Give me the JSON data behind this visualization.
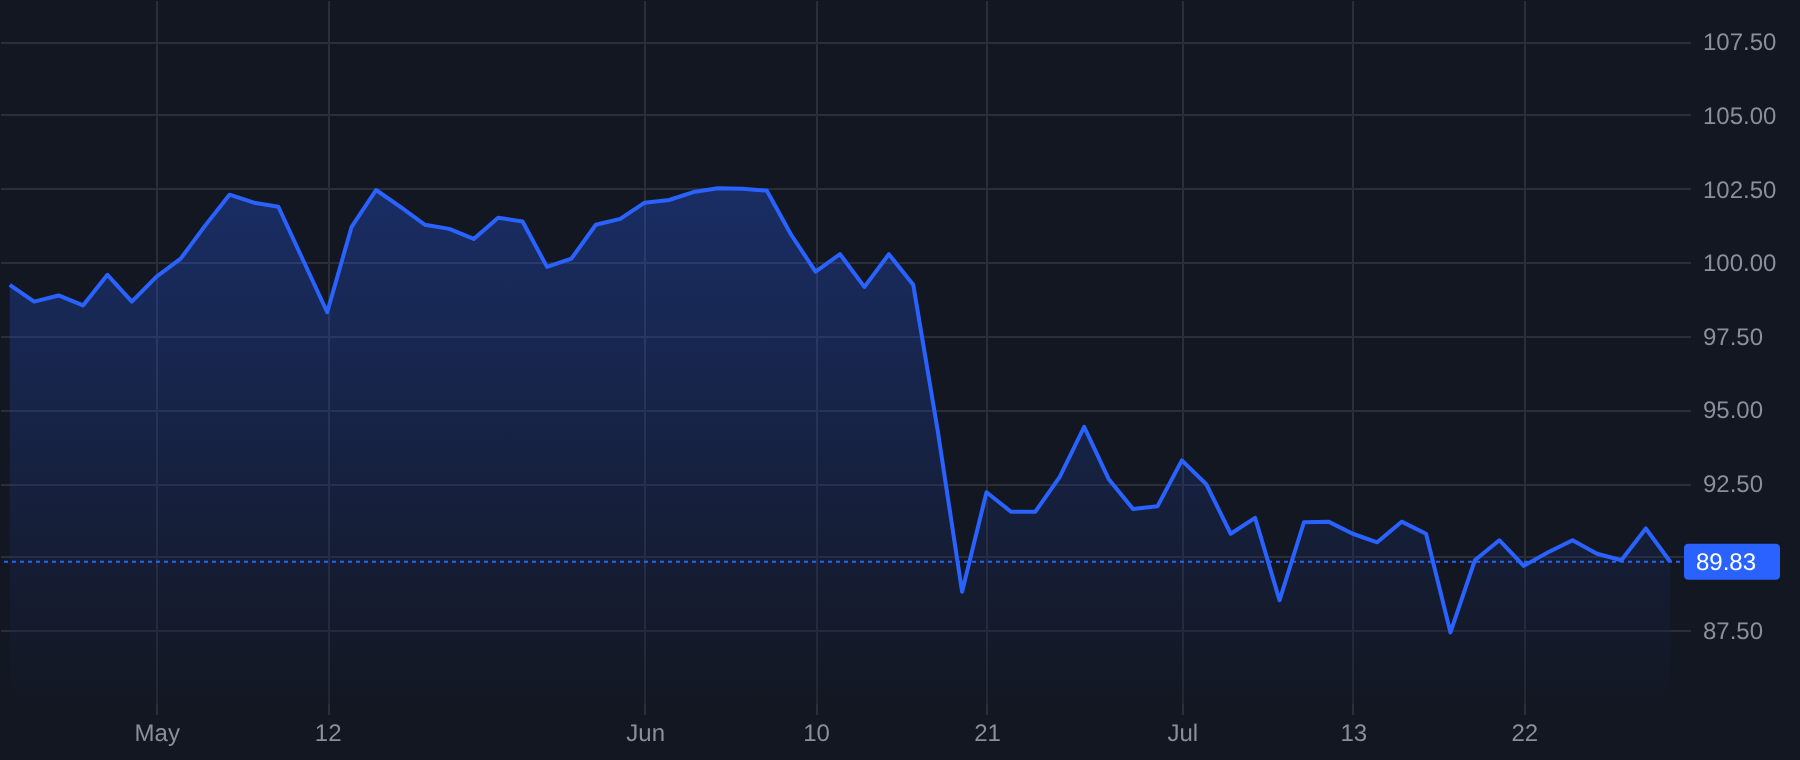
{
  "chart_data": {
    "type": "area",
    "categories": [
      null,
      null,
      null,
      null,
      null,
      null,
      "May",
      null,
      null,
      null,
      null,
      null,
      null,
      "12",
      null,
      null,
      null,
      null,
      null,
      null,
      null,
      null,
      null,
      null,
      null,
      null,
      "Jun",
      null,
      null,
      null,
      null,
      null,
      null,
      "10",
      null,
      null,
      null,
      null,
      null,
      null,
      "21",
      null,
      null,
      null,
      null,
      null,
      null,
      null,
      "Jul",
      null,
      null,
      null,
      null,
      null,
      null,
      "13",
      null,
      null,
      null,
      null,
      null,
      null,
      "22",
      null,
      null,
      null,
      null,
      null,
      null
    ],
    "series": [
      {
        "color": "#2962ff",
        "values": [
          99.23,
          98.66,
          98.87,
          98.53,
          99.57,
          98.66,
          99.5,
          100.12,
          101.24,
          102.29,
          102.02,
          101.88,
          100.09,
          98.3,
          101.2,
          102.45,
          101.88,
          101.27,
          101.13,
          100.79,
          101.51,
          101.38,
          99.84,
          100.12,
          101.27,
          101.47,
          102.02,
          102.11,
          102.38,
          102.51,
          102.49,
          102.43,
          100.93,
          99.68,
          100.27,
          99.16,
          100.27,
          99.23,
          94.29,
          88.81,
          92.19,
          91.53,
          91.53,
          92.71,
          94.41,
          92.64,
          91.62,
          91.71,
          93.27,
          92.46,
          90.78,
          91.32,
          88.52,
          91.17,
          91.19,
          90.78,
          90.49,
          91.19,
          90.78,
          87.43,
          89.88,
          90.56,
          89.69,
          90.15,
          90.56,
          90.1,
          89.88,
          90.96,
          89.83
        ]
      }
    ],
    "ylim": [
      85,
      108.9
    ],
    "yticks": [
      {
        "value": 87.5,
        "label": "87.50"
      },
      {
        "value": 90,
        "label": null
      },
      {
        "value": 92.5,
        "label": "92.50"
      },
      {
        "value": 95,
        "label": "95.00"
      },
      {
        "value": 97.5,
        "label": "97.50"
      },
      {
        "value": 100,
        "label": "100.00"
      },
      {
        "value": 102.5,
        "label": "102.50"
      },
      {
        "value": 105,
        "label": "105.00"
      },
      {
        "value": 107.5,
        "label": "107.50"
      }
    ],
    "ref_lines": [
      {
        "axis": "y",
        "value": 89.83,
        "label": "89.83",
        "color": "#2962ff",
        "line_style": "dotted"
      }
    ],
    "grid": true,
    "marker": "none",
    "line_style": "solid"
  }
}
